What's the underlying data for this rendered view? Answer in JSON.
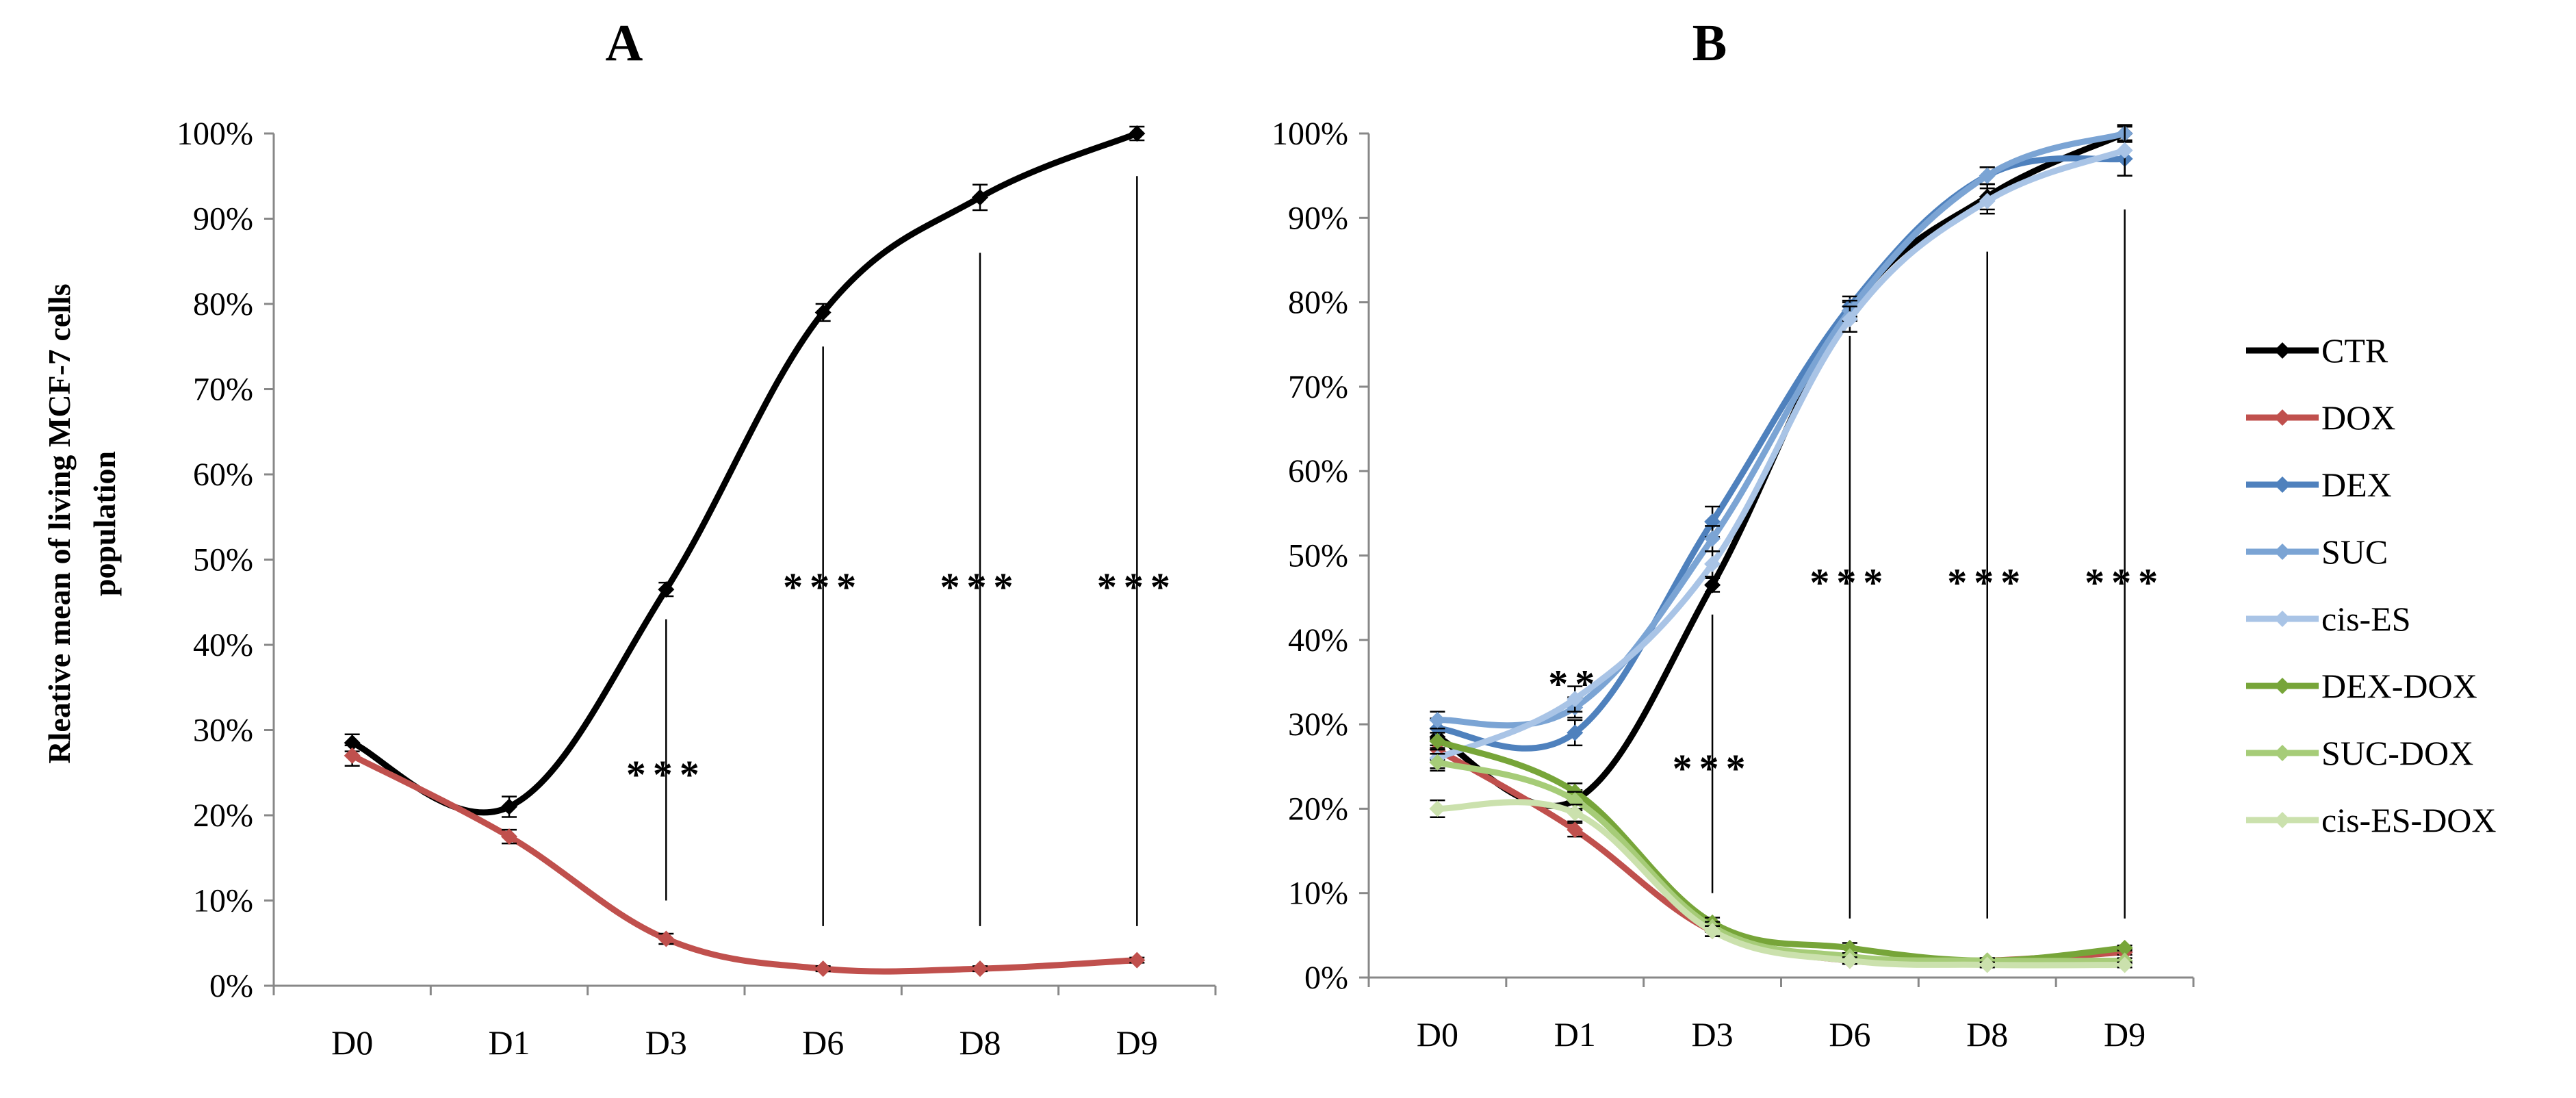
{
  "figure": {
    "ylabel_line1": "Rleative mean of living MCF-7 cells",
    "ylabel_line2": "population"
  },
  "chart_data": [
    {
      "type": "line",
      "panel": "A",
      "title": "A",
      "xlabel": "",
      "ylabel": "Rleative mean of living MCF-7 cells population",
      "categories": [
        "D0",
        "D1",
        "D3",
        "D6",
        "D8",
        "D9"
      ],
      "ylim": [
        0,
        100
      ],
      "yticks": [
        "0%",
        "10%",
        "20%",
        "30%",
        "40%",
        "50%",
        "60%",
        "70%",
        "80%",
        "90%",
        "100%"
      ],
      "grid": false,
      "series": [
        {
          "name": "CTR",
          "color": "#000000",
          "values": [
            28.5,
            21,
            46.5,
            79,
            92.5,
            100
          ],
          "errors": [
            1,
            1.2,
            0.8,
            1,
            1.5,
            0.8
          ]
        },
        {
          "name": "DOX",
          "color": "#c0504d",
          "values": [
            27,
            17.5,
            5.5,
            2,
            2,
            3
          ],
          "errors": [
            1.2,
            0.8,
            0.6,
            0.3,
            0.3,
            0.3
          ]
        }
      ],
      "annotations": [
        {
          "category": "D3",
          "text": "***",
          "y_text": 25,
          "line_from": 10,
          "line_to": 43
        },
        {
          "category": "D6",
          "text": "***",
          "y_text": 47,
          "line_from": 7,
          "line_to": 75
        },
        {
          "category": "D8",
          "text": "***",
          "y_text": 47,
          "line_from": 7,
          "line_to": 86
        },
        {
          "category": "D9",
          "text": "***",
          "y_text": 47,
          "line_from": 7,
          "line_to": 95
        }
      ]
    },
    {
      "type": "line",
      "panel": "B",
      "title": "B",
      "xlabel": "",
      "ylabel": "",
      "categories": [
        "D0",
        "D1",
        "D3",
        "D6",
        "D8",
        "D9"
      ],
      "ylim": [
        0,
        100
      ],
      "yticks": [
        "0%",
        "10%",
        "20%",
        "30%",
        "40%",
        "50%",
        "60%",
        "70%",
        "80%",
        "90%",
        "100%"
      ],
      "grid": false,
      "legend_position": "right",
      "series": [
        {
          "name": "CTR",
          "color": "#000000",
          "values": [
            28.5,
            21,
            46.5,
            79,
            92.5,
            100
          ],
          "errors": [
            1,
            1.2,
            0.8,
            1,
            1.5,
            0.8
          ]
        },
        {
          "name": "DOX",
          "color": "#c0504d",
          "values": [
            27,
            17.5,
            5.5,
            2,
            2,
            3
          ],
          "errors": [
            1.2,
            0.8,
            0.6,
            0.3,
            0.3,
            0.3
          ]
        },
        {
          "name": "DEX",
          "color": "#4f81bd",
          "values": [
            29.5,
            29,
            54,
            79.5,
            95,
            97
          ],
          "errors": [
            1.2,
            1.5,
            1.8,
            1.2,
            1,
            2
          ]
        },
        {
          "name": "SUC",
          "color": "#7ba4d4",
          "values": [
            30.5,
            32,
            52,
            79,
            95,
            100
          ],
          "errors": [
            1,
            1.2,
            1.5,
            1.2,
            1,
            1
          ]
        },
        {
          "name": "cis-ES",
          "color": "#a9c4e6",
          "values": [
            26,
            33,
            49,
            78,
            92,
            98
          ],
          "errors": [
            1.2,
            1.5,
            1.5,
            1.5,
            1.5,
            3
          ]
        },
        {
          "name": "DEX-DOX",
          "color": "#77a539",
          "values": [
            28,
            22,
            6.5,
            3.5,
            2,
            3.5
          ],
          "errors": [
            1,
            1,
            0.6,
            0.6,
            0.3,
            0.3
          ]
        },
        {
          "name": "SUC-DOX",
          "color": "#a6cc78",
          "values": [
            25.5,
            21,
            6,
            2.5,
            2,
            2
          ],
          "errors": [
            1,
            1,
            0.6,
            0.4,
            0.3,
            0.3
          ]
        },
        {
          "name": "cis-ES-DOX",
          "color": "#cbe1ad",
          "values": [
            20,
            19.5,
            5.5,
            2,
            1.5,
            1.5
          ],
          "errors": [
            1,
            1,
            0.6,
            0.4,
            0.3,
            0.3
          ]
        }
      ],
      "annotations": [
        {
          "category": "D1",
          "text": "**",
          "y_text": 35,
          "line_from": null,
          "line_to": null
        },
        {
          "category": "D3",
          "text": "***",
          "y_text": 25,
          "line_from": 10,
          "line_to": 43
        },
        {
          "category": "D6",
          "text": "***",
          "y_text": 47,
          "line_from": 7,
          "line_to": 76
        },
        {
          "category": "D8",
          "text": "***",
          "y_text": 47,
          "line_from": 7,
          "line_to": 86
        },
        {
          "category": "D9",
          "text": "***",
          "y_text": 47,
          "line_from": 7,
          "line_to": 91
        }
      ]
    }
  ]
}
